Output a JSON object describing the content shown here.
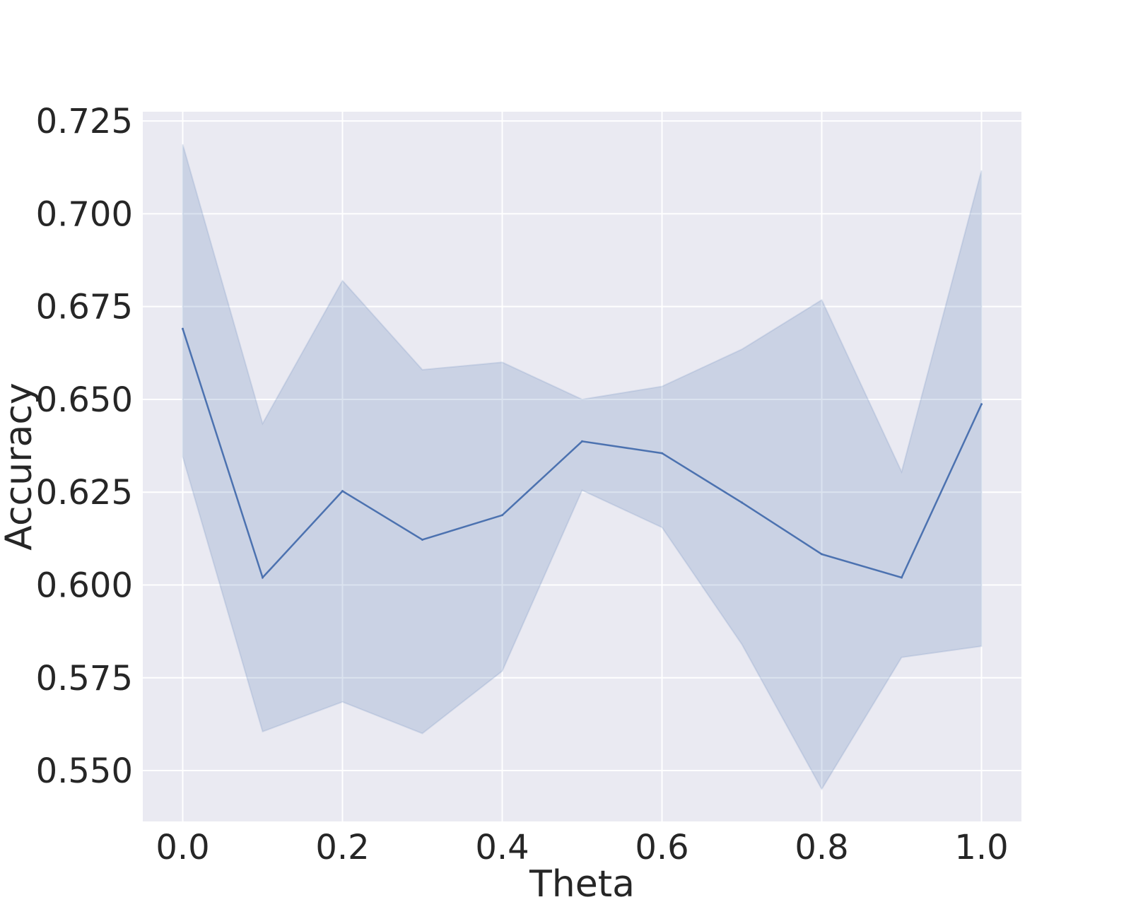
{
  "chart_data": {
    "type": "line",
    "xlabel": "Theta",
    "ylabel": "Accuracy",
    "xlim": [
      -0.05,
      1.05
    ],
    "ylim": [
      0.5363,
      0.7275
    ],
    "xticks": [
      0.0,
      0.2,
      0.4,
      0.6,
      0.8,
      1.0
    ],
    "xtick_labels": [
      "0.0",
      "0.2",
      "0.4",
      "0.6",
      "0.8",
      "1.0"
    ],
    "yticks": [
      0.55,
      0.575,
      0.6,
      0.625,
      0.65,
      0.675,
      0.7,
      0.725
    ],
    "ytick_labels": [
      "0.550",
      "0.575",
      "0.600",
      "0.625",
      "0.650",
      "0.675",
      "0.700",
      "0.725"
    ],
    "grid": true,
    "style": "seaborn-darkgrid",
    "colors": {
      "background": "#eaeaf2",
      "grid": "#ffffff",
      "line": "#4c72b0",
      "band": "#4c72b0"
    },
    "series": [
      {
        "x": [
          0.0,
          0.1,
          0.2,
          0.3,
          0.4,
          0.5,
          0.6,
          0.7,
          0.8,
          0.9,
          1.0
        ],
        "values": [
          0.669,
          0.602,
          0.6253,
          0.6122,
          0.6188,
          0.6387,
          0.6355,
          0.6222,
          0.6083,
          0.602,
          0.6487
        ],
        "ci_upper": [
          0.7187,
          0.6435,
          0.682,
          0.658,
          0.66,
          0.65,
          0.6535,
          0.6635,
          0.6768,
          0.6305,
          0.7117
        ],
        "ci_lower": [
          0.6345,
          0.5605,
          0.5685,
          0.56,
          0.5768,
          0.6255,
          0.6155,
          0.584,
          0.545,
          0.5805,
          0.5835
        ]
      }
    ]
  }
}
